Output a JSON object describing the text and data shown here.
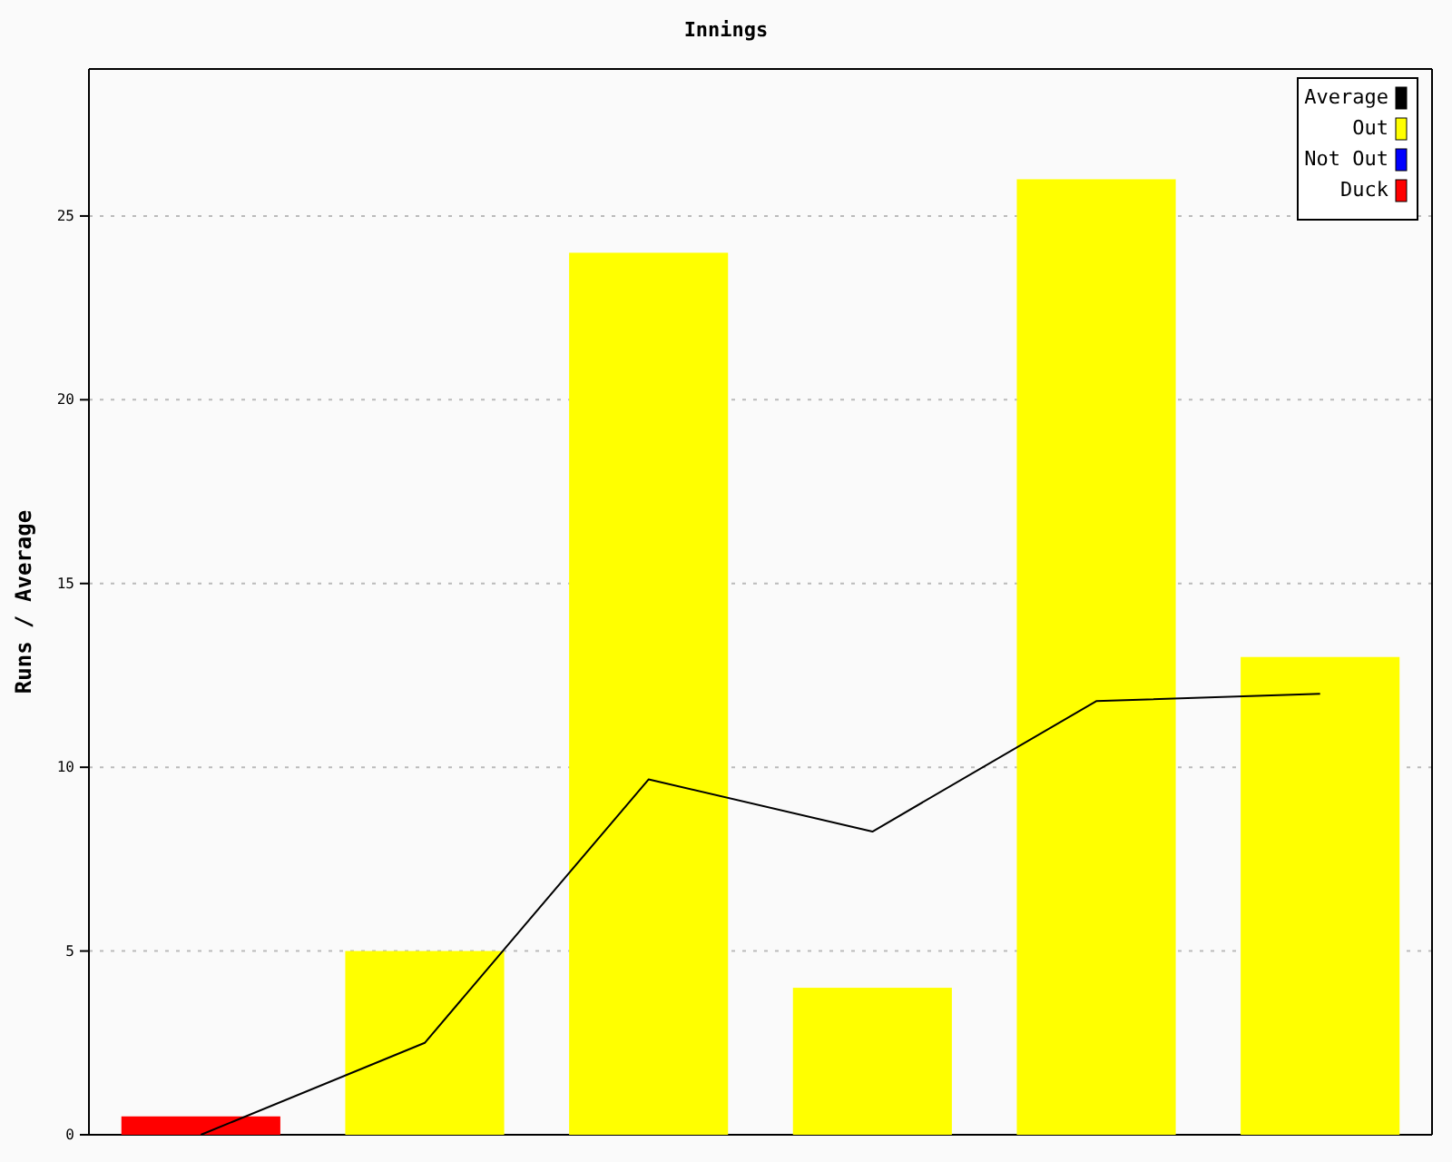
{
  "chart_data": {
    "type": "bar",
    "title": "Innings",
    "ylabel": "Runs / Average",
    "categories": [
      null,
      null,
      null,
      null,
      null,
      null
    ],
    "series": [
      {
        "name": "Average",
        "type": "line",
        "color": "#000000",
        "values": [
          0,
          2.5,
          9.67,
          8.25,
          11.8,
          12
        ]
      },
      {
        "name": "Out",
        "color": "#ffff00",
        "values": [
          null,
          5,
          24,
          4,
          26,
          13
        ]
      },
      {
        "name": "Not Out",
        "color": "#0000ff",
        "values": [
          null,
          null,
          null,
          null,
          null,
          null
        ]
      },
      {
        "name": "Duck",
        "color": "#ff0000",
        "values": [
          0.5,
          null,
          null,
          null,
          null,
          null
        ]
      }
    ],
    "stacked": true,
    "ylim": [
      0,
      29
    ],
    "yticks": [
      0,
      5,
      10,
      15,
      20,
      25
    ],
    "grid": "y",
    "legend": "top right",
    "tick_labels": "y",
    "marker": "none",
    "line_style": "solid"
  }
}
